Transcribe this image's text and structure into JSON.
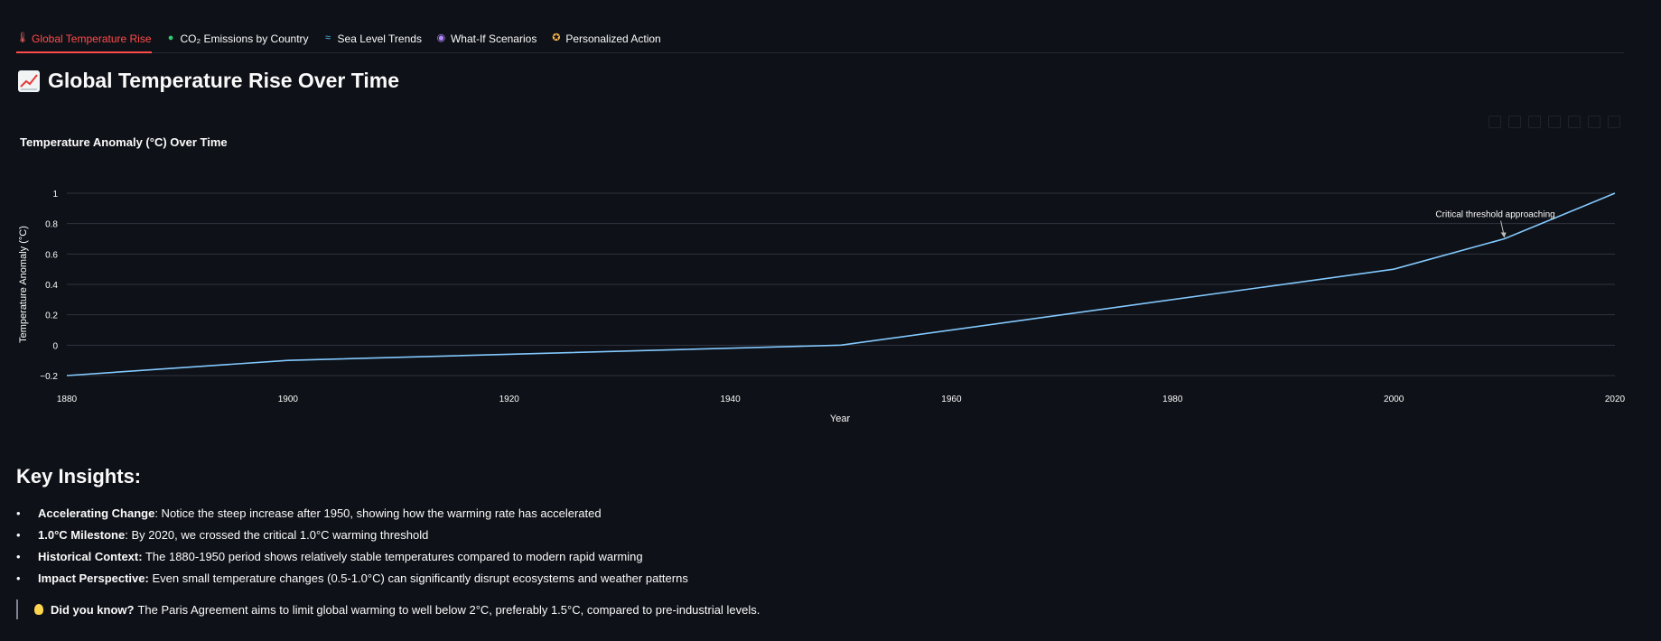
{
  "tabs": [
    {
      "label": "Global Temperature Rise",
      "icon": "thermometer-icon",
      "active": true
    },
    {
      "label": "CO₂ Emissions by Country",
      "icon": "globe-icon",
      "active": false
    },
    {
      "label": "Sea Level Trends",
      "icon": "wave-icon",
      "active": false
    },
    {
      "label": "What-If Scenarios",
      "icon": "crystal-ball-icon",
      "active": false
    },
    {
      "label": "Personalized Action",
      "icon": "compass-icon",
      "active": false
    }
  ],
  "page": {
    "title": "Global Temperature Rise Over Time",
    "title_icon": "chart-increasing-icon"
  },
  "chart_data": {
    "type": "line",
    "title": "Temperature Anomaly (°C) Over Time",
    "xlabel": "Year",
    "ylabel": "Temperature Anomaly (°C)",
    "xlim": [
      1880,
      2020
    ],
    "ylim": [
      -0.2,
      1.0
    ],
    "x_ticks": [
      "1880",
      "1900",
      "1920",
      "1940",
      "1960",
      "1980",
      "2000",
      "2020"
    ],
    "y_ticks": [
      "−0.2",
      "0",
      "0.2",
      "0.4",
      "0.6",
      "0.8",
      "1"
    ],
    "grid": true,
    "line_color": "#83c9ff",
    "series": [
      {
        "x": [
          1880,
          1900,
          1950,
          2000,
          2010,
          2020
        ],
        "y": [
          -0.2,
          -0.1,
          0.0,
          0.5,
          0.7,
          1.0
        ]
      }
    ],
    "annotations": [
      {
        "text": "Critical threshold approaching",
        "x": 2010,
        "y": 0.7
      }
    ]
  },
  "insights": {
    "title": "Key Insights:",
    "items": [
      {
        "label": "Accelerating Change",
        "text": ": Notice the steep increase after 1950, showing how the warming rate has accelerated"
      },
      {
        "label": "1.0°C Milestone",
        "text": ": By 2020, we crossed the critical 1.0°C warming threshold"
      },
      {
        "label": "Historical Context:",
        "text": " The 1880-1950 period shows relatively stable temperatures compared to modern rapid warming"
      },
      {
        "label": "Impact Perspective:",
        "text": " Even small temperature changes (0.5-1.0°C) can significantly disrupt ecosystems and weather patterns"
      }
    ]
  },
  "tip": {
    "label": "Did you know?",
    "text": "The Paris Agreement aims to limit global warming to well below 2°C, preferably 1.5°C, compared to pre-industrial levels.",
    "icon": "lightbulb-icon"
  },
  "colors": {
    "background": "#0e1117",
    "accent": "#ff4b4b",
    "line": "#83c9ff",
    "grid": "#31333f"
  }
}
